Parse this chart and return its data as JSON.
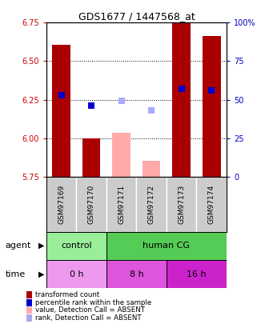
{
  "title": "GDS1677 / 1447568_at",
  "samples": [
    "GSM97169",
    "GSM97170",
    "GSM97171",
    "GSM97172",
    "GSM97173",
    "GSM97174"
  ],
  "ylim_left": [
    5.75,
    6.75
  ],
  "ylim_right": [
    0,
    100
  ],
  "yticks_left": [
    5.75,
    6.0,
    6.25,
    6.5,
    6.75
  ],
  "yticks_right": [
    0,
    25,
    50,
    75,
    100
  ],
  "ytick_right_labels": [
    "0",
    "25",
    "50",
    "75",
    "100%"
  ],
  "bar_bottoms": [
    5.75,
    5.75,
    5.75,
    5.75,
    5.75,
    5.75
  ],
  "bar_heights": [
    0.855,
    0.25,
    0.285,
    0.105,
    1.0,
    0.915
  ],
  "bar_colors": [
    "#aa0000",
    "#aa0000",
    "#ffaaaa",
    "#ffaaaa",
    "#aa0000",
    "#aa0000"
  ],
  "rank_y": [
    6.28,
    6.21,
    6.24,
    6.18,
    6.32,
    6.31
  ],
  "rank_colors": [
    "#0000cc",
    "#0000cc",
    "#aaaaff",
    "#aaaaff",
    "#0000cc",
    "#0000cc"
  ],
  "rank_size": 35,
  "left_tick_color": "#cc0000",
  "right_tick_color": "#0000bb",
  "agent_control_color": "#99ee99",
  "agent_humancg_color": "#55cc55",
  "time_0h_color": "#ee99ee",
  "time_8h_color": "#dd55dd",
  "time_16h_color": "#cc22cc",
  "sample_bg_color": "#cccccc",
  "legend_items": [
    {
      "color": "#aa0000",
      "label": "transformed count"
    },
    {
      "color": "#0000cc",
      "label": "percentile rank within the sample"
    },
    {
      "color": "#ffaaaa",
      "label": "value, Detection Call = ABSENT"
    },
    {
      "color": "#aaaaee",
      "label": "rank, Detection Call = ABSENT"
    }
  ]
}
